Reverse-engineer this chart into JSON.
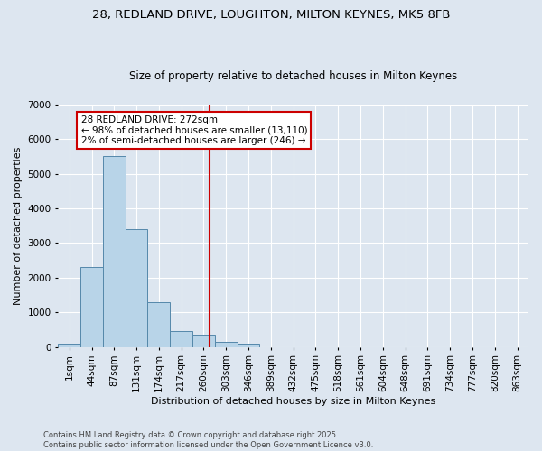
{
  "title1": "28, REDLAND DRIVE, LOUGHTON, MILTON KEYNES, MK5 8FB",
  "title2": "Size of property relative to detached houses in Milton Keynes",
  "xlabel": "Distribution of detached houses by size in Milton Keynes",
  "ylabel": "Number of detached properties",
  "bin_labels": [
    "1sqm",
    "44sqm",
    "87sqm",
    "131sqm",
    "174sqm",
    "217sqm",
    "260sqm",
    "303sqm",
    "346sqm",
    "389sqm",
    "432sqm",
    "475sqm",
    "518sqm",
    "561sqm",
    "604sqm",
    "648sqm",
    "691sqm",
    "734sqm",
    "777sqm",
    "820sqm",
    "863sqm"
  ],
  "bar_heights": [
    90,
    2300,
    5500,
    3400,
    1300,
    450,
    350,
    150,
    90,
    0,
    0,
    0,
    0,
    0,
    0,
    0,
    0,
    0,
    0,
    0,
    0
  ],
  "bar_color": "#b8d4e8",
  "bar_edge_color": "#5588aa",
  "vline_x_idx": 6.28,
  "vline_color": "#cc0000",
  "annotation_text": "28 REDLAND DRIVE: 272sqm\n← 98% of detached houses are smaller (13,110)\n2% of semi-detached houses are larger (246) →",
  "annotation_box_color": "#ffffff",
  "annotation_box_edge": "#cc0000",
  "ylim": [
    0,
    7000
  ],
  "yticks": [
    0,
    1000,
    2000,
    3000,
    4000,
    5000,
    6000,
    7000
  ],
  "background_color": "#dde6f0",
  "grid_color": "#ffffff",
  "footnote": "Contains HM Land Registry data © Crown copyright and database right 2025.\nContains public sector information licensed under the Open Government Licence v3.0.",
  "title1_fontsize": 9.5,
  "title2_fontsize": 8.5,
  "tick_fontsize": 7.5,
  "ylabel_fontsize": 8,
  "xlabel_fontsize": 8,
  "annot_fontsize": 7.5
}
